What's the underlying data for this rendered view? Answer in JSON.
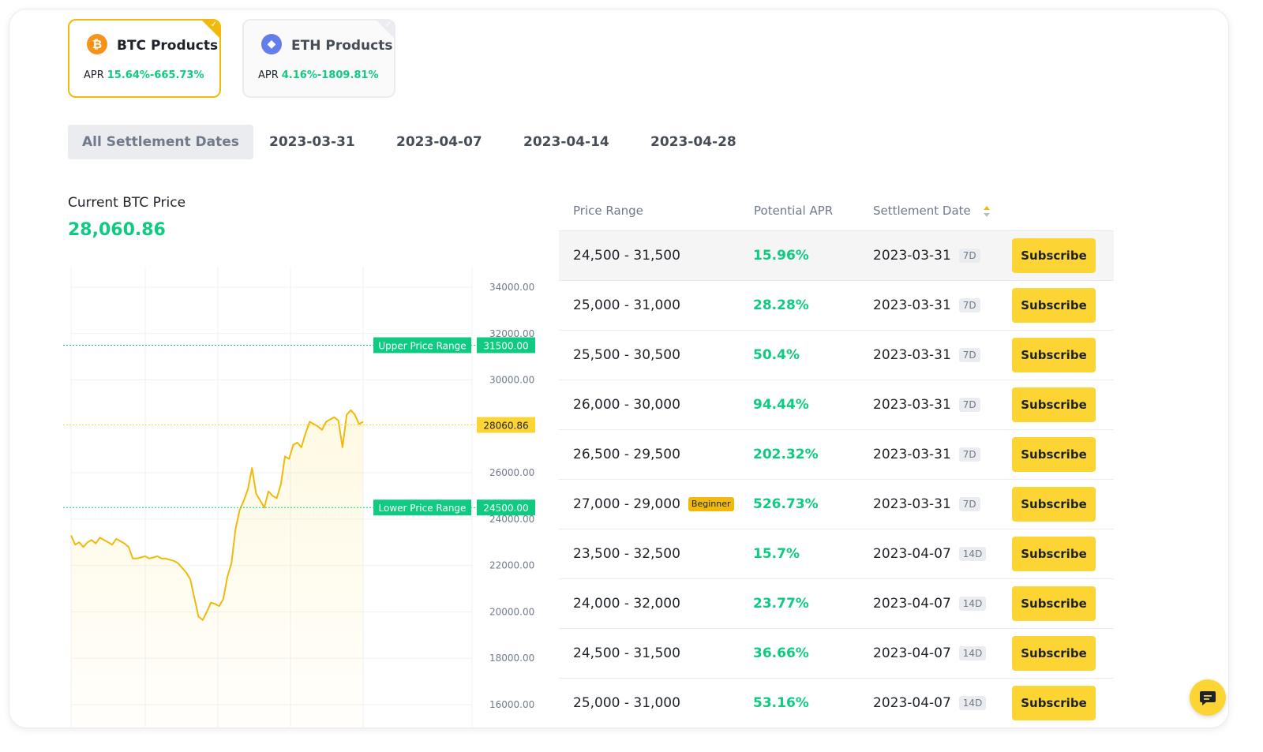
{
  "products": [
    {
      "name": "BTC Products",
      "apr_label": "APR",
      "apr_value": "15.64%-665.73%",
      "icon": "bitcoin-icon",
      "selected": true
    },
    {
      "name": "ETH Products",
      "apr_label": "APR",
      "apr_value": "4.16%-1809.81%",
      "icon": "ethereum-icon",
      "selected": false
    }
  ],
  "date_tabs": [
    "All Settlement Dates",
    "2023-03-31",
    "2023-04-07",
    "2023-04-14",
    "2023-04-28"
  ],
  "active_date_tab": "All Settlement Dates",
  "current_price": {
    "label": "Current BTC Price",
    "value": "28,060.86"
  },
  "chart_data": {
    "type": "line",
    "y_ticks": [
      "34000.00",
      "32000.00",
      "30000.00",
      "26000.00",
      "24000.00",
      "22000.00",
      "20000.00",
      "18000.00",
      "16000.00"
    ],
    "ylim": [
      15000,
      35000
    ],
    "markers": [
      {
        "label": "Upper Price Range",
        "value": "31500.00",
        "color": "#0ecb81"
      },
      {
        "label": "",
        "value": "28060.86",
        "color": "#fcd535"
      },
      {
        "label": "Lower Price Range",
        "value": "24500.00",
        "color": "#0ecb81"
      }
    ],
    "series": [
      {
        "color": "#f0b90b",
        "y": [
          23300,
          22900,
          23000,
          22800,
          23000,
          23100,
          22950,
          23200,
          23100,
          23000,
          22900,
          23150,
          23050,
          22950,
          22800,
          22300,
          22300,
          22350,
          22400,
          22300,
          22350,
          22400,
          22300,
          22300,
          22250,
          22200,
          22100,
          21900,
          21700,
          21400,
          20600,
          19800,
          19650,
          20000,
          20400,
          20350,
          20250,
          20550,
          21500,
          22100,
          23600,
          24400,
          24800,
          25300,
          26200,
          25100,
          24800,
          24500,
          25200,
          25000,
          24900,
          25500,
          26700,
          26600,
          27200,
          27300,
          27100,
          27700,
          28200,
          28100,
          28000,
          27850,
          28200,
          28300,
          28400,
          28250,
          27100,
          28500,
          28700,
          28500,
          28100,
          28200
        ]
      }
    ]
  },
  "table": {
    "headers": {
      "price_range": "Price Range",
      "potential_apr": "Potential APR",
      "settlement_date": "Settlement Date"
    },
    "subscribe_label": "Subscribe",
    "rows": [
      {
        "range": "24,500 - 31,500",
        "apr": "15.96%",
        "date": "2023-03-31",
        "term": "7D",
        "badge": ""
      },
      {
        "range": "25,000 - 31,000",
        "apr": "28.28%",
        "date": "2023-03-31",
        "term": "7D",
        "badge": ""
      },
      {
        "range": "25,500 - 30,500",
        "apr": "50.4%",
        "date": "2023-03-31",
        "term": "7D",
        "badge": ""
      },
      {
        "range": "26,000 - 30,000",
        "apr": "94.44%",
        "date": "2023-03-31",
        "term": "7D",
        "badge": ""
      },
      {
        "range": "26,500 - 29,500",
        "apr": "202.32%",
        "date": "2023-03-31",
        "term": "7D",
        "badge": ""
      },
      {
        "range": "27,000 - 29,000",
        "apr": "526.73%",
        "date": "2023-03-31",
        "term": "7D",
        "badge": "Beginner"
      },
      {
        "range": "23,500 - 32,500",
        "apr": "15.7%",
        "date": "2023-04-07",
        "term": "14D",
        "badge": ""
      },
      {
        "range": "24,000 - 32,000",
        "apr": "23.77%",
        "date": "2023-04-07",
        "term": "14D",
        "badge": ""
      },
      {
        "range": "24,500 - 31,500",
        "apr": "36.66%",
        "date": "2023-04-07",
        "term": "14D",
        "badge": ""
      },
      {
        "range": "25,000 - 31,000",
        "apr": "53.16%",
        "date": "2023-04-07",
        "term": "14D",
        "badge": ""
      }
    ]
  },
  "colors": {
    "accent": "#fcd535",
    "positive": "#0ecb81",
    "brand": "#f0b90b"
  },
  "chat_icon": "chat-icon"
}
